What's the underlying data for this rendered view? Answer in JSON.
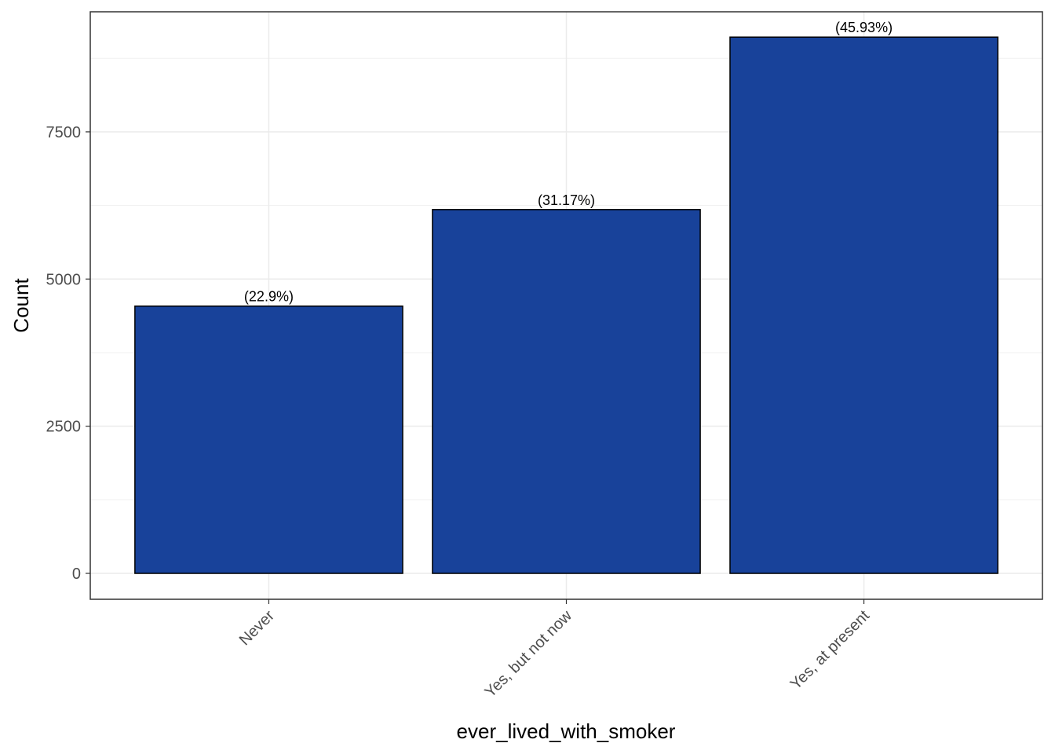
{
  "chart_data": {
    "type": "bar",
    "x_label": "ever_lived_with_smoker",
    "y_label": "Count",
    "categories": [
      "Never",
      "Yes, but not now",
      "Yes, at present"
    ],
    "values": [
      4540,
      6180,
      9110
    ],
    "bar_labels": [
      "(22.9%)",
      "(31.17%)",
      "(45.93%)"
    ],
    "color": "#18429a",
    "ylim": [
      -440,
      9540
    ],
    "yticks": [
      0,
      2500,
      5000,
      7500
    ],
    "grid": true
  }
}
